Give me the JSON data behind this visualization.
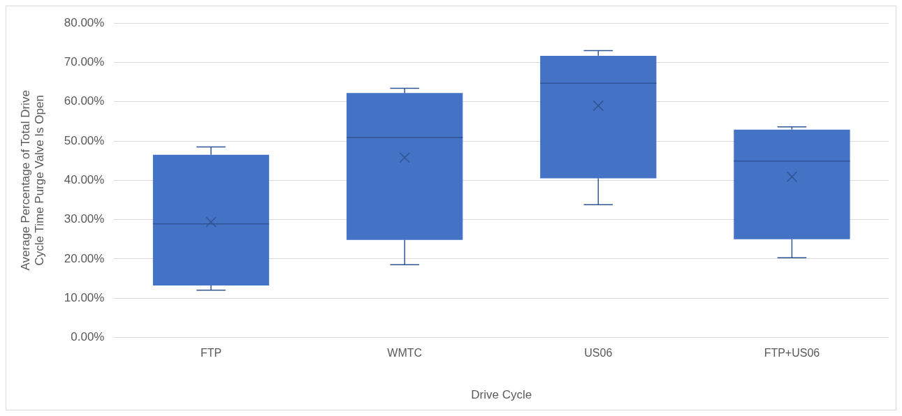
{
  "chart_data": {
    "type": "box",
    "xlabel": "Drive Cycle",
    "ylabel": "Average Percentage of Total Drive Cycle Time Purge Valve Is Open",
    "categories": [
      "FTP",
      "WMTC",
      "US06",
      "FTP+US06"
    ],
    "color": "#4472c4",
    "boxes": [
      {
        "low": 12.0,
        "q1": 13.2,
        "median": 28.9,
        "q3": 46.5,
        "high": 48.5,
        "mean": 29.4
      },
      {
        "low": 18.5,
        "q1": 24.8,
        "median": 50.9,
        "q3": 62.2,
        "high": 63.4,
        "mean": 45.8
      },
      {
        "low": 33.8,
        "q1": 40.5,
        "median": 64.7,
        "q3": 71.7,
        "high": 73.0,
        "mean": 59.0
      },
      {
        "low": 20.3,
        "q1": 25.0,
        "median": 44.9,
        "q3": 52.9,
        "high": 53.6,
        "mean": 40.9
      }
    ],
    "ylim": [
      0,
      80
    ],
    "yticks": [
      {
        "value": 0,
        "label": "0.00%"
      },
      {
        "value": 10,
        "label": "10.00%"
      },
      {
        "value": 20,
        "label": "20.00%"
      },
      {
        "value": 30,
        "label": "30.00%"
      },
      {
        "value": 40,
        "label": "40.00%"
      },
      {
        "value": 50,
        "label": "50.00%"
      },
      {
        "value": 60,
        "label": "60.00%"
      },
      {
        "value": 70,
        "label": "70.00%"
      },
      {
        "value": 80,
        "label": "80.00%"
      }
    ],
    "grid": "y",
    "legend": false
  }
}
